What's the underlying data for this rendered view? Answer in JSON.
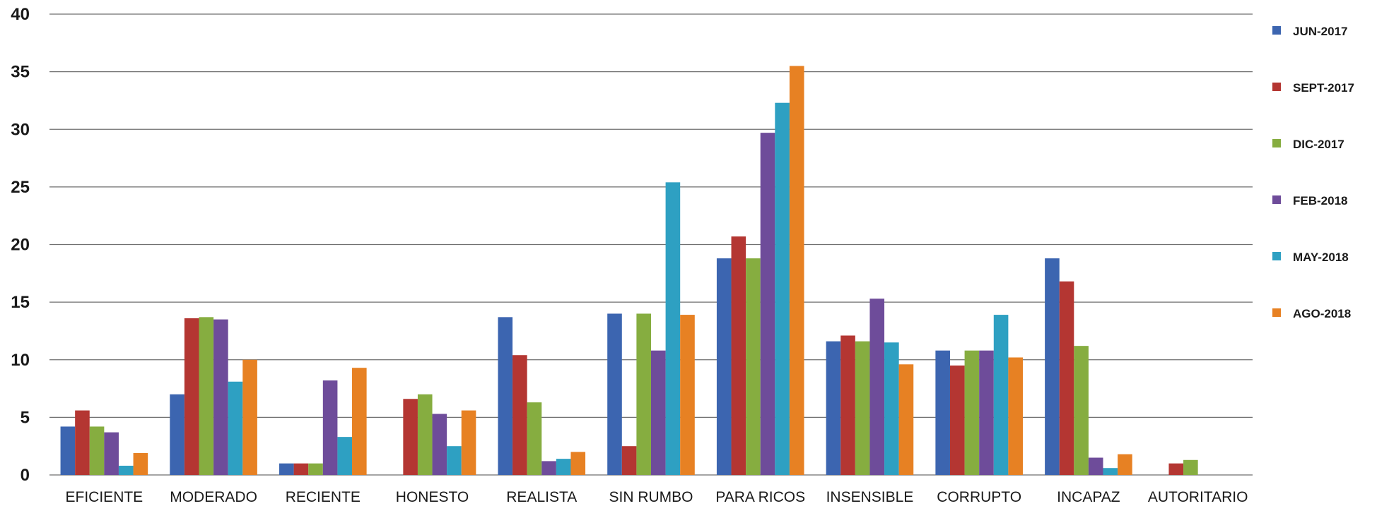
{
  "chart_data": {
    "type": "bar",
    "categories": [
      "EFICIENTE",
      "MODERADO",
      "RECIENTE",
      "HONESTO",
      "REALISTA",
      "SIN RUMBO",
      "PARA RICOS",
      "INSENSIBLE",
      "CORRUPTO",
      "INCAPAZ",
      "AUTORITARIO"
    ],
    "series": [
      {
        "name": "JUN-2017",
        "color": "#3c65b0",
        "values": [
          4.2,
          7.0,
          1.0,
          0,
          13.7,
          14.0,
          18.8,
          11.6,
          10.8,
          18.8,
          0
        ]
      },
      {
        "name": "SEPT-2017",
        "color": "#b43632",
        "values": [
          5.6,
          13.6,
          1.0,
          6.6,
          10.4,
          2.5,
          20.7,
          12.1,
          9.5,
          16.8,
          1.0
        ]
      },
      {
        "name": "DIC-2017",
        "color": "#86ad40",
        "values": [
          4.2,
          13.7,
          1.0,
          7.0,
          6.3,
          14.0,
          18.8,
          11.6,
          10.8,
          11.2,
          1.3
        ]
      },
      {
        "name": "FEB-2018",
        "color": "#6e4c9a",
        "values": [
          3.7,
          13.5,
          8.2,
          5.3,
          1.2,
          10.8,
          29.7,
          15.3,
          10.8,
          1.5,
          0
        ]
      },
      {
        "name": "MAY-2018",
        "color": "#2ea0c2",
        "values": [
          0.8,
          8.1,
          3.3,
          2.5,
          1.4,
          25.4,
          32.3,
          11.5,
          13.9,
          0.6,
          0
        ]
      },
      {
        "name": "AGO-2018",
        "color": "#e78123",
        "values": [
          1.9,
          10.0,
          9.3,
          5.6,
          2.0,
          13.9,
          35.5,
          9.6,
          10.2,
          1.8,
          0
        ]
      }
    ],
    "title": "",
    "xlabel": "",
    "ylabel": "",
    "ylim": [
      0,
      40
    ],
    "yticks": [
      "0",
      "5",
      "10",
      "15",
      "20",
      "25",
      "30",
      "35",
      "40"
    ],
    "grid": true,
    "legend_position": "right"
  }
}
